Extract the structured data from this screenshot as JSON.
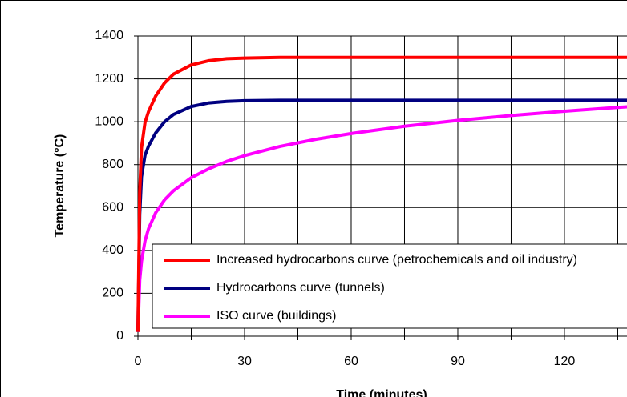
{
  "chart_data": {
    "type": "line",
    "x_label": "Time (minutes)",
    "y_label": "Temperature (°C)",
    "x": [
      0,
      0.5,
      1,
      2,
      3,
      5,
      7.5,
      10,
      15,
      20,
      25,
      30,
      40,
      50,
      60,
      75,
      90,
      105,
      120,
      135,
      140
    ],
    "series": [
      {
        "name": "Increased hydrocarbons curve (petrochemicals and oil industry)",
        "color": "#ff0000",
        "values": [
          20,
          670,
          878,
          997,
          1048,
          1120,
          1181,
          1222,
          1265,
          1285,
          1294,
          1297,
          1300,
          1300,
          1300,
          1300,
          1300,
          1300,
          1300,
          1300,
          1300
        ]
      },
      {
        "name": "Hydrocarbons curve (tunnels)",
        "color": "#000080",
        "values": [
          20,
          568,
          743,
          844,
          887,
          948,
          1000,
          1034,
          1071,
          1088,
          1095,
          1098,
          1100,
          1100,
          1100,
          1100,
          1100,
          1100,
          1100,
          1100,
          1100
        ]
      },
      {
        "name": "ISO curve (buildings)",
        "color": "#ff00ff",
        "values": [
          20,
          261,
          349,
          445,
          502,
          576,
          636,
          678,
          739,
          781,
          815,
          842,
          885,
          918,
          945,
          979,
          1006,
          1029,
          1049,
          1067,
          1072
        ]
      }
    ],
    "xlim": [
      0,
      137.6
    ],
    "ylim": [
      0,
      1400
    ],
    "xticks": [
      0,
      30,
      60,
      90,
      120
    ],
    "xgrid_minor": [
      15,
      45,
      75,
      105,
      135
    ],
    "yticks": [
      0,
      200,
      400,
      600,
      800,
      1000,
      1200,
      1400
    ],
    "grid": true,
    "legend": "lower right"
  }
}
